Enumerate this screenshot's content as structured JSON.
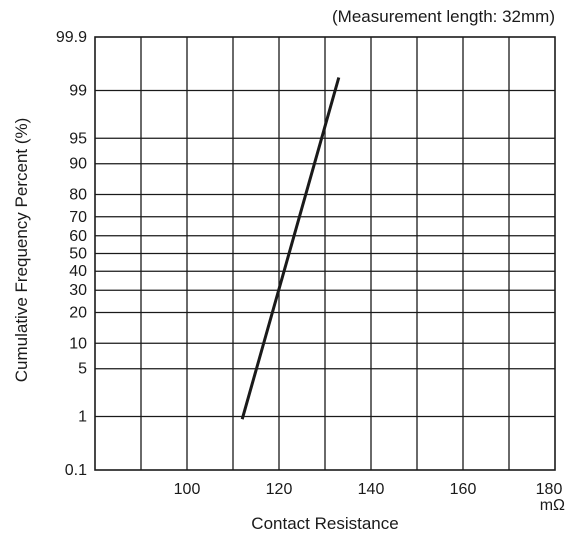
{
  "chart_data": {
    "type": "line",
    "title": "",
    "annotation": "(Measurement length: 32mm)",
    "xlabel": "Contact Resistance",
    "xunit": "mΩ",
    "ylabel": "Cumulative Frequency Percent (%)",
    "x_scale": "linear",
    "y_scale": "normal-probability",
    "xlim": [
      80,
      180
    ],
    "x_ticks": [
      100,
      120,
      140,
      160,
      180
    ],
    "x_tick_labels": [
      "100",
      "120",
      "140",
      "160",
      "180"
    ],
    "y_ticks": [
      0.1,
      1,
      5,
      10,
      20,
      30,
      40,
      50,
      60,
      70,
      80,
      90,
      95,
      99,
      99.9
    ],
    "y_tick_labels": [
      "0.1",
      "1",
      "5",
      "10",
      "20",
      "30",
      "40",
      "50",
      "60",
      "70",
      "80",
      "90",
      "95",
      "99",
      "99.9"
    ],
    "grid": true,
    "series": [
      {
        "x": [
          112,
          133
        ],
        "y": [
          0.9,
          99.4
        ]
      }
    ]
  }
}
